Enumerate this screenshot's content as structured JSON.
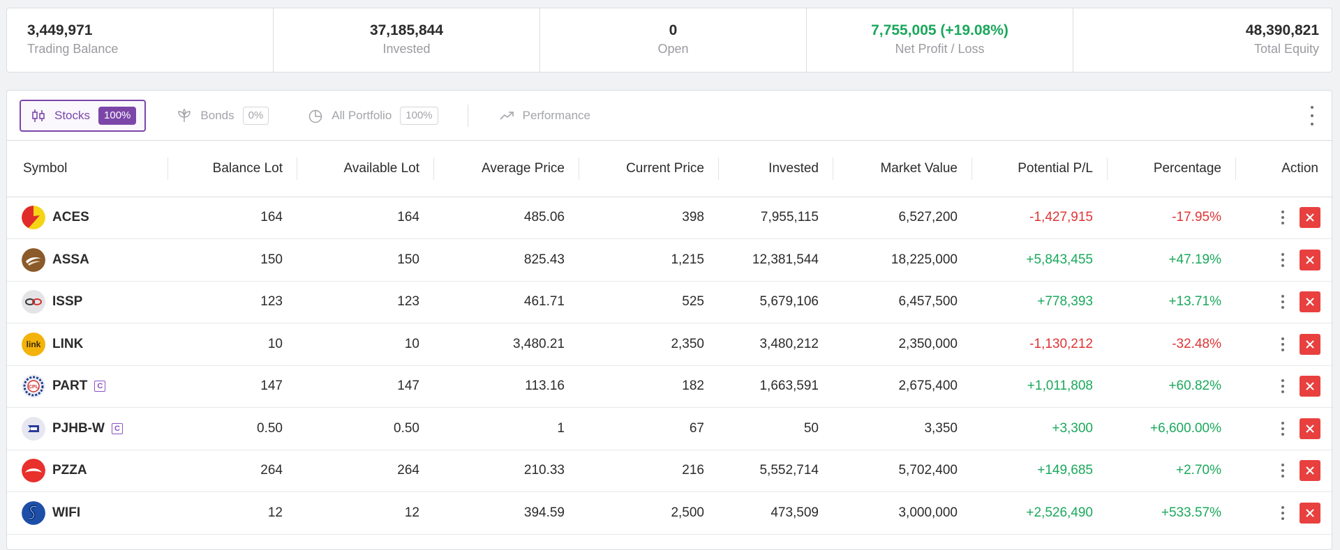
{
  "summary": [
    {
      "value": "3,449,971",
      "label": "Trading Balance",
      "align": "left",
      "color": ""
    },
    {
      "value": "37,185,844",
      "label": "Invested",
      "align": "center",
      "color": ""
    },
    {
      "value": "0",
      "label": "Open",
      "align": "center",
      "color": ""
    },
    {
      "value": "7,755,005 (+19.08%)",
      "label": "Net Profit / Loss",
      "align": "center",
      "color": "green"
    },
    {
      "value": "48,390,821",
      "label": "Total Equity",
      "align": "right",
      "color": ""
    }
  ],
  "tabs": [
    {
      "label": "Stocks",
      "badge": "100%",
      "icon": "candlestick-icon",
      "active": true
    },
    {
      "label": "Bonds",
      "badge": "0%",
      "icon": "leaf-icon",
      "active": false
    },
    {
      "label": "All Portfolio",
      "badge": "100%",
      "icon": "pie-chart-icon",
      "active": false
    },
    {
      "label": "Performance",
      "badge": "",
      "icon": "trending-up-icon",
      "active": false
    }
  ],
  "columns": [
    "Symbol",
    "Balance Lot",
    "Available Lot",
    "Average Price",
    "Current Price",
    "Invested",
    "Market Value",
    "Potential P/L",
    "Percentage",
    "Action"
  ],
  "rows": [
    {
      "symbol": "ACES",
      "logo": "aces",
      "c": false,
      "balance_lot": "164",
      "available_lot": "164",
      "avg_price": "485.06",
      "cur_price": "398",
      "invested": "7,955,115",
      "market_value": "6,527,200",
      "pl": "-1,427,915",
      "pct": "-17.95%",
      "sign": "neg"
    },
    {
      "symbol": "ASSA",
      "logo": "assa",
      "c": false,
      "balance_lot": "150",
      "available_lot": "150",
      "avg_price": "825.43",
      "cur_price": "1,215",
      "invested": "12,381,544",
      "market_value": "18,225,000",
      "pl": "+5,843,455",
      "pct": "+47.19%",
      "sign": "pos"
    },
    {
      "symbol": "ISSP",
      "logo": "issp",
      "c": false,
      "balance_lot": "123",
      "available_lot": "123",
      "avg_price": "461.71",
      "cur_price": "525",
      "invested": "5,679,106",
      "market_value": "6,457,500",
      "pl": "+778,393",
      "pct": "+13.71%",
      "sign": "pos"
    },
    {
      "symbol": "LINK",
      "logo": "link",
      "c": false,
      "balance_lot": "10",
      "available_lot": "10",
      "avg_price": "3,480.21",
      "cur_price": "2,350",
      "invested": "3,480,212",
      "market_value": "2,350,000",
      "pl": "-1,130,212",
      "pct": "-32.48%",
      "sign": "neg"
    },
    {
      "symbol": "PART",
      "logo": "part",
      "c": true,
      "balance_lot": "147",
      "available_lot": "147",
      "avg_price": "113.16",
      "cur_price": "182",
      "invested": "1,663,591",
      "market_value": "2,675,400",
      "pl": "+1,011,808",
      "pct": "+60.82%",
      "sign": "pos"
    },
    {
      "symbol": "PJHB-W",
      "logo": "pjhb",
      "c": true,
      "balance_lot": "0.50",
      "available_lot": "0.50",
      "avg_price": "1",
      "cur_price": "67",
      "invested": "50",
      "market_value": "3,350",
      "pl": "+3,300",
      "pct": "+6,600.00%",
      "sign": "pos"
    },
    {
      "symbol": "PZZA",
      "logo": "pzza",
      "c": false,
      "balance_lot": "264",
      "available_lot": "264",
      "avg_price": "210.33",
      "cur_price": "216",
      "invested": "5,552,714",
      "market_value": "5,702,400",
      "pl": "+149,685",
      "pct": "+2.70%",
      "sign": "pos"
    },
    {
      "symbol": "WIFI",
      "logo": "wifi",
      "c": false,
      "balance_lot": "12",
      "available_lot": "12",
      "avg_price": "394.59",
      "cur_price": "2,500",
      "invested": "473,509",
      "market_value": "3,000,000",
      "pl": "+2,526,490",
      "pct": "+533.57%",
      "sign": "pos"
    }
  ],
  "cbadge_text": "C",
  "colors": {
    "accent": "#7b46a8",
    "positive": "#1aa85c",
    "negative": "#e03434",
    "delete": "#e8403f"
  }
}
